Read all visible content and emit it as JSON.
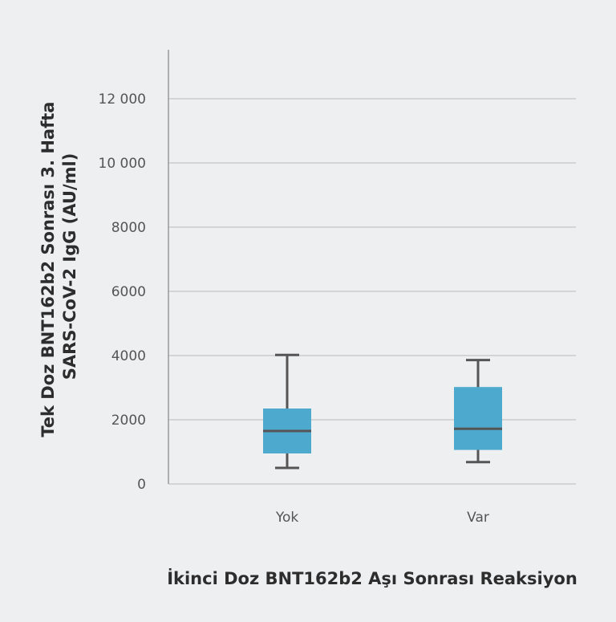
{
  "chart_data": {
    "type": "boxplot",
    "title": "",
    "xlabel": "İkinci Doz BNT162b2 Aşı Sonrası Reaksiyon",
    "ylabel_lines": [
      "Tek Doz BNT162b2 Sonrası 3. Hafta",
      "SARS-CoV-2 IgG (AU/ml)"
    ],
    "ylim": [
      0,
      13500
    ],
    "yticks": [
      0,
      2000,
      4000,
      6000,
      8000,
      10000,
      12000
    ],
    "ytick_labels": [
      "0",
      "2000",
      "4000",
      "6000",
      "8000",
      "10 000",
      "12 000"
    ],
    "categories": [
      "Yok",
      "Var"
    ],
    "boxes": [
      {
        "category": "Yok",
        "min": 500,
        "q1": 950,
        "median": 1650,
        "q3": 2350,
        "max": 4020
      },
      {
        "category": "Var",
        "min": 680,
        "q1": 1060,
        "median": 1720,
        "q3": 3020,
        "max": 3860
      }
    ],
    "grid": true,
    "colors": {
      "box": "#4ea9ce",
      "line": "#555555",
      "grid": "#c3c4c6",
      "axis": "#999999"
    }
  }
}
